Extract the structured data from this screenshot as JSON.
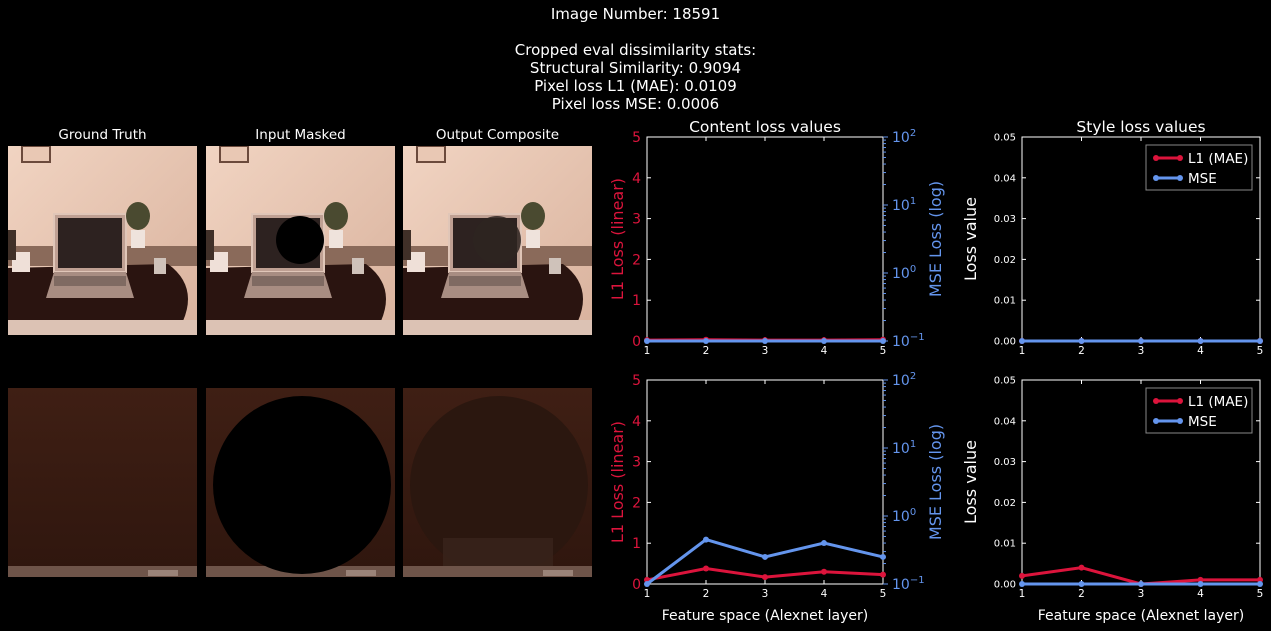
{
  "header": {
    "image_number": "Image Number: 18591",
    "stats_title": "Cropped eval dissimilarity stats:",
    "ssim": "Structural Similarity: 0.9094",
    "l1": "Pixel loss L1 (MAE): 0.0109",
    "mse": "Pixel loss MSE: 0.0006"
  },
  "columns": [
    "Ground Truth",
    "Input Masked",
    "Output Composite"
  ],
  "colors": {
    "l1": "#dc143c",
    "mse": "#6495ed",
    "axis": "#ffffff",
    "bg": "#000000"
  },
  "chart_data": [
    {
      "type": "line",
      "title": "Content loss values",
      "xlabel": "",
      "ylabel": "L1 Loss (linear)",
      "y2label": "MSE Loss (log)",
      "x": [
        1,
        2,
        3,
        4,
        5
      ],
      "xlim": [
        1,
        5
      ],
      "ylim": [
        0,
        5
      ],
      "y2lim": [
        0.1,
        100
      ],
      "y2scale": "log",
      "yticks": [
        "0",
        "1",
        "2",
        "3",
        "4",
        "5"
      ],
      "y2ticks": [
        [
          "10",
          "−1"
        ],
        [
          "10",
          "0"
        ],
        [
          "10",
          "1"
        ],
        [
          "10",
          "2"
        ]
      ],
      "xticks": [
        "1",
        "2",
        "3",
        "4",
        "5"
      ],
      "series": [
        {
          "name": "L1",
          "axis": "left",
          "values": [
            0.02,
            0.03,
            0.02,
            0.02,
            0.03
          ]
        },
        {
          "name": "MSE",
          "axis": "right",
          "values": [
            0.0001,
            0.0001,
            0.0001,
            0.0001,
            0.0001
          ]
        }
      ],
      "legend": null
    },
    {
      "type": "line",
      "title": "Style loss values",
      "xlabel": "",
      "ylabel": "Loss value",
      "x": [
        1,
        2,
        3,
        4,
        5
      ],
      "xlim": [
        1,
        5
      ],
      "ylim": [
        0,
        0.05
      ],
      "yticks": [
        "0.00",
        "0.01",
        "0.02",
        "0.03",
        "0.04",
        "0.05"
      ],
      "xticks": [
        "1",
        "2",
        "3",
        "4",
        "5"
      ],
      "series": [
        {
          "name": "L1 (MAE)",
          "axis": "left",
          "values": [
            0.0,
            0.0,
            0.0,
            0.0,
            0.0
          ]
        },
        {
          "name": "MSE",
          "axis": "left",
          "values": [
            0.0,
            0.0,
            0.0,
            0.0,
            0.0
          ]
        }
      ],
      "legend": "top-right"
    },
    {
      "type": "line",
      "title": "",
      "xlabel": "Feature space (Alexnet layer)",
      "ylabel": "L1 Loss (linear)",
      "y2label": "MSE Loss (log)",
      "x": [
        1,
        2,
        3,
        4,
        5
      ],
      "xlim": [
        1,
        5
      ],
      "ylim": [
        0,
        5
      ],
      "y2lim": [
        0.1,
        100
      ],
      "y2scale": "log",
      "yticks": [
        "0",
        "1",
        "2",
        "3",
        "4",
        "5"
      ],
      "y2ticks": [
        [
          "10",
          "−1"
        ],
        [
          "10",
          "0"
        ],
        [
          "10",
          "1"
        ],
        [
          "10",
          "2"
        ]
      ],
      "xticks": [
        "1",
        "2",
        "3",
        "4",
        "5"
      ],
      "series": [
        {
          "name": "L1",
          "axis": "left",
          "values": [
            0.1,
            0.38,
            0.17,
            0.3,
            0.23
          ]
        },
        {
          "name": "MSE",
          "axis": "right",
          "values": [
            0.1,
            0.45,
            0.25,
            0.4,
            0.25
          ]
        }
      ],
      "legend": null
    },
    {
      "type": "line",
      "title": "",
      "xlabel": "Feature space (Alexnet layer)",
      "ylabel": "Loss value",
      "x": [
        1,
        2,
        3,
        4,
        5
      ],
      "xlim": [
        1,
        5
      ],
      "ylim": [
        0,
        0.05
      ],
      "yticks": [
        "0.00",
        "0.01",
        "0.02",
        "0.03",
        "0.04",
        "0.05"
      ],
      "xticks": [
        "1",
        "2",
        "3",
        "4",
        "5"
      ],
      "series": [
        {
          "name": "L1 (MAE)",
          "axis": "left",
          "values": [
            0.002,
            0.004,
            0.0,
            0.001,
            0.001
          ]
        },
        {
          "name": "MSE",
          "axis": "left",
          "values": [
            0.0,
            0.0,
            0.0,
            0.0,
            0.0
          ]
        }
      ],
      "legend": "top-right"
    }
  ]
}
